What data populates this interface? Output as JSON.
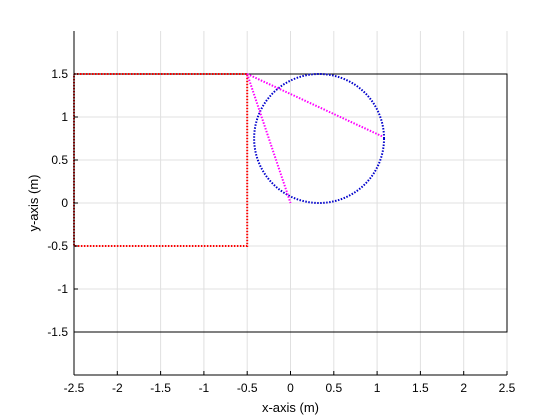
{
  "chart_data": {
    "type": "line",
    "title": "",
    "xlabel": "x-axis (m)",
    "ylabel": "y-axis (m)",
    "xlim": [
      -2.5,
      2.5
    ],
    "ylim": [
      -2,
      2
    ],
    "xticks": [
      -2.5,
      -2,
      -1.5,
      -1,
      -0.5,
      0,
      0.5,
      1,
      1.5,
      2,
      2.5
    ],
    "yticks": [
      -1.5,
      -1,
      -0.5,
      0,
      0.5,
      1,
      1.5
    ],
    "xtick_labels": [
      "-2.5",
      "-2",
      "-1.5",
      "-1",
      "-0.5",
      "0",
      "0.5",
      "1",
      "1.5",
      "2",
      "2.5"
    ],
    "ytick_labels": [
      "-1.5",
      "-1",
      "-0.5",
      "0",
      "0.5",
      "1",
      "1.5"
    ],
    "grid": true,
    "series": [
      {
        "color": "#000000",
        "style": "solid",
        "x": [
          -2.5,
          2.5,
          2.5,
          -2.5,
          -2.5
        ],
        "y": [
          1.5,
          1.5,
          -1.5,
          -1.5,
          1.5
        ]
      },
      {
        "color": "#ff0000",
        "style": "dotted",
        "x": [
          -2.5,
          -0.5,
          -0.5,
          -2.5,
          -2.5
        ],
        "y": [
          1.5,
          1.5,
          -0.5,
          -0.5,
          1.5
        ]
      },
      {
        "color": "#0000cc",
        "style": "dotted",
        "shape": "circle",
        "center": [
          0.33,
          0.75
        ],
        "radius": 0.75
      },
      {
        "color": "#ff00ff",
        "style": "dotted",
        "x": [
          -0.5,
          0.0
        ],
        "y": [
          1.5,
          0.0
        ]
      },
      {
        "color": "#ff00ff",
        "style": "dotted",
        "x": [
          -0.5,
          1.07
        ],
        "y": [
          1.5,
          0.77
        ]
      }
    ]
  }
}
